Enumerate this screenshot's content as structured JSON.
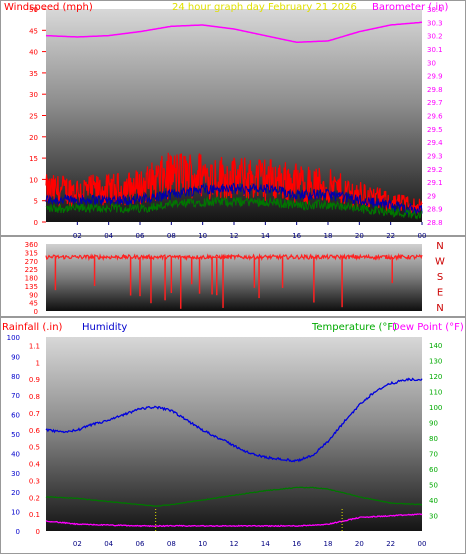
{
  "header": {
    "title": "24 hour graph day   February 21 2026",
    "windspeed_label": "Windspeed (mph)",
    "barometer_label": "Barometer (.in)"
  },
  "footer_labels": {
    "rainfall": "Rainfall (.in)",
    "humidity": "Humidity",
    "temperature": "Temperature (°F)",
    "dewpoint": "Dew Point (°F)"
  },
  "colors": {
    "windspeed": "#ff0000",
    "gust_dark": "#0000aa",
    "wind_avg": "#007700",
    "barometer": "#ff00ff",
    "direction": "#ff2020",
    "rain": "#ff00ff",
    "humidity": "#0000dd",
    "temperature": "#007700",
    "title": "#e0e000",
    "axis_right_bottom": "#00aa00",
    "axis_left_bottom": "#0000cc"
  },
  "chart_data": [
    {
      "type": "line",
      "name": "wind-barometer",
      "x_ticks": [
        "02",
        "04",
        "06",
        "08",
        "10",
        "12",
        "14",
        "16",
        "18",
        "20",
        "22",
        "00"
      ],
      "y_left_ticks": [
        0,
        5,
        10,
        15,
        20,
        25,
        30,
        35,
        40,
        45,
        50
      ],
      "y_left_range": [
        0,
        50
      ],
      "y_right_ticks": [
        "28.8",
        "28.9",
        "29",
        "29.1",
        "29.2",
        "29.3",
        "29.4",
        "29.5",
        "29.6",
        "29.7",
        "29.8",
        "29.9",
        "30",
        "30.1",
        "30.2",
        "30.3",
        "30.4"
      ],
      "y_right_range": [
        28.8,
        30.4
      ],
      "series": [
        {
          "name": "barometer",
          "x": [
            0,
            2,
            4,
            6,
            8,
            10,
            12,
            14,
            16,
            18,
            20,
            22,
            24
          ],
          "values": [
            30.2,
            30.19,
            30.2,
            30.23,
            30.27,
            30.28,
            30.25,
            30.2,
            30.15,
            30.16,
            30.23,
            30.28,
            30.3
          ]
        },
        {
          "name": "windspeed",
          "x": [
            0,
            2,
            4,
            6,
            8,
            10,
            12,
            14,
            16,
            18,
            20,
            22,
            24
          ],
          "values": [
            8,
            8,
            8,
            9,
            12,
            12,
            11,
            11,
            10,
            9,
            7,
            5,
            4
          ]
        },
        {
          "name": "wind-avg",
          "x": [
            0,
            2,
            4,
            6,
            8,
            10,
            12,
            14,
            16,
            18,
            20,
            22,
            24
          ],
          "values": [
            4,
            4,
            4,
            4,
            5,
            6,
            6,
            6,
            5,
            5,
            4,
            3,
            2
          ]
        }
      ]
    },
    {
      "type": "scatter",
      "name": "wind-direction",
      "y_ticks": [
        "360",
        "315",
        "270",
        "225",
        "180",
        "135",
        "90",
        "45",
        "0"
      ],
      "y_range": [
        0,
        360
      ],
      "compass_labels": [
        "N",
        "W",
        "S",
        "E",
        "N"
      ],
      "baseline_deg": 290,
      "dips_hour": [
        0.6,
        3.1,
        5.4,
        6.0,
        6.7,
        7.6,
        8.0,
        8.6,
        9.3,
        9.8,
        10.6,
        10.9,
        11.3,
        13.3,
        13.6,
        15.1,
        17.1,
        18.9,
        22.1
      ]
    },
    {
      "type": "line",
      "name": "rain-humidity-temperature",
      "x_ticks": [
        "02",
        "04",
        "06",
        "08",
        "10",
        "12",
        "14",
        "16",
        "18",
        "20",
        "22",
        "00"
      ],
      "y_left_outer_ticks": [
        0,
        10,
        20,
        30,
        40,
        50,
        60,
        70,
        80,
        90,
        100
      ],
      "y_left_inner_ticks": [
        "0",
        "0.1",
        "0.2",
        "0.3",
        "0.4",
        "0.5",
        "0.6",
        "0.7",
        "0.8",
        "0.9",
        "1",
        "1.1"
      ],
      "y_right_ticks": [
        30,
        40,
        50,
        60,
        70,
        80,
        90,
        100,
        110,
        120,
        130,
        140
      ],
      "y_right_range": [
        20,
        145
      ],
      "series": [
        {
          "name": "humidity",
          "x": [
            0,
            1,
            2,
            3,
            4,
            5,
            6,
            7,
            8,
            9,
            10,
            11,
            12,
            13,
            14,
            15,
            16,
            17,
            18,
            19,
            20,
            21,
            22,
            23,
            24
          ],
          "values": [
            52,
            51,
            52,
            55,
            57,
            60,
            63,
            64,
            62,
            57,
            52,
            48,
            44,
            40,
            38,
            37,
            36,
            39,
            46,
            56,
            65,
            72,
            76,
            78,
            78
          ]
        },
        {
          "name": "temperature",
          "x": [
            0,
            2,
            4,
            6,
            7,
            8,
            10,
            12,
            14,
            16,
            17,
            18,
            20,
            22,
            24
          ],
          "values": [
            42,
            41,
            39,
            37,
            36,
            37,
            40,
            43,
            46,
            48,
            48,
            47,
            42,
            38,
            37
          ]
        },
        {
          "name": "rainfall",
          "x": [
            0,
            2,
            4,
            6,
            8,
            10,
            12,
            14,
            16,
            18,
            19,
            20,
            22,
            24
          ],
          "values": [
            0.06,
            0.04,
            0.035,
            0.03,
            0.03,
            0.03,
            0.03,
            0.03,
            0.03,
            0.04,
            0.06,
            0.08,
            0.09,
            0.1
          ]
        }
      ]
    }
  ]
}
